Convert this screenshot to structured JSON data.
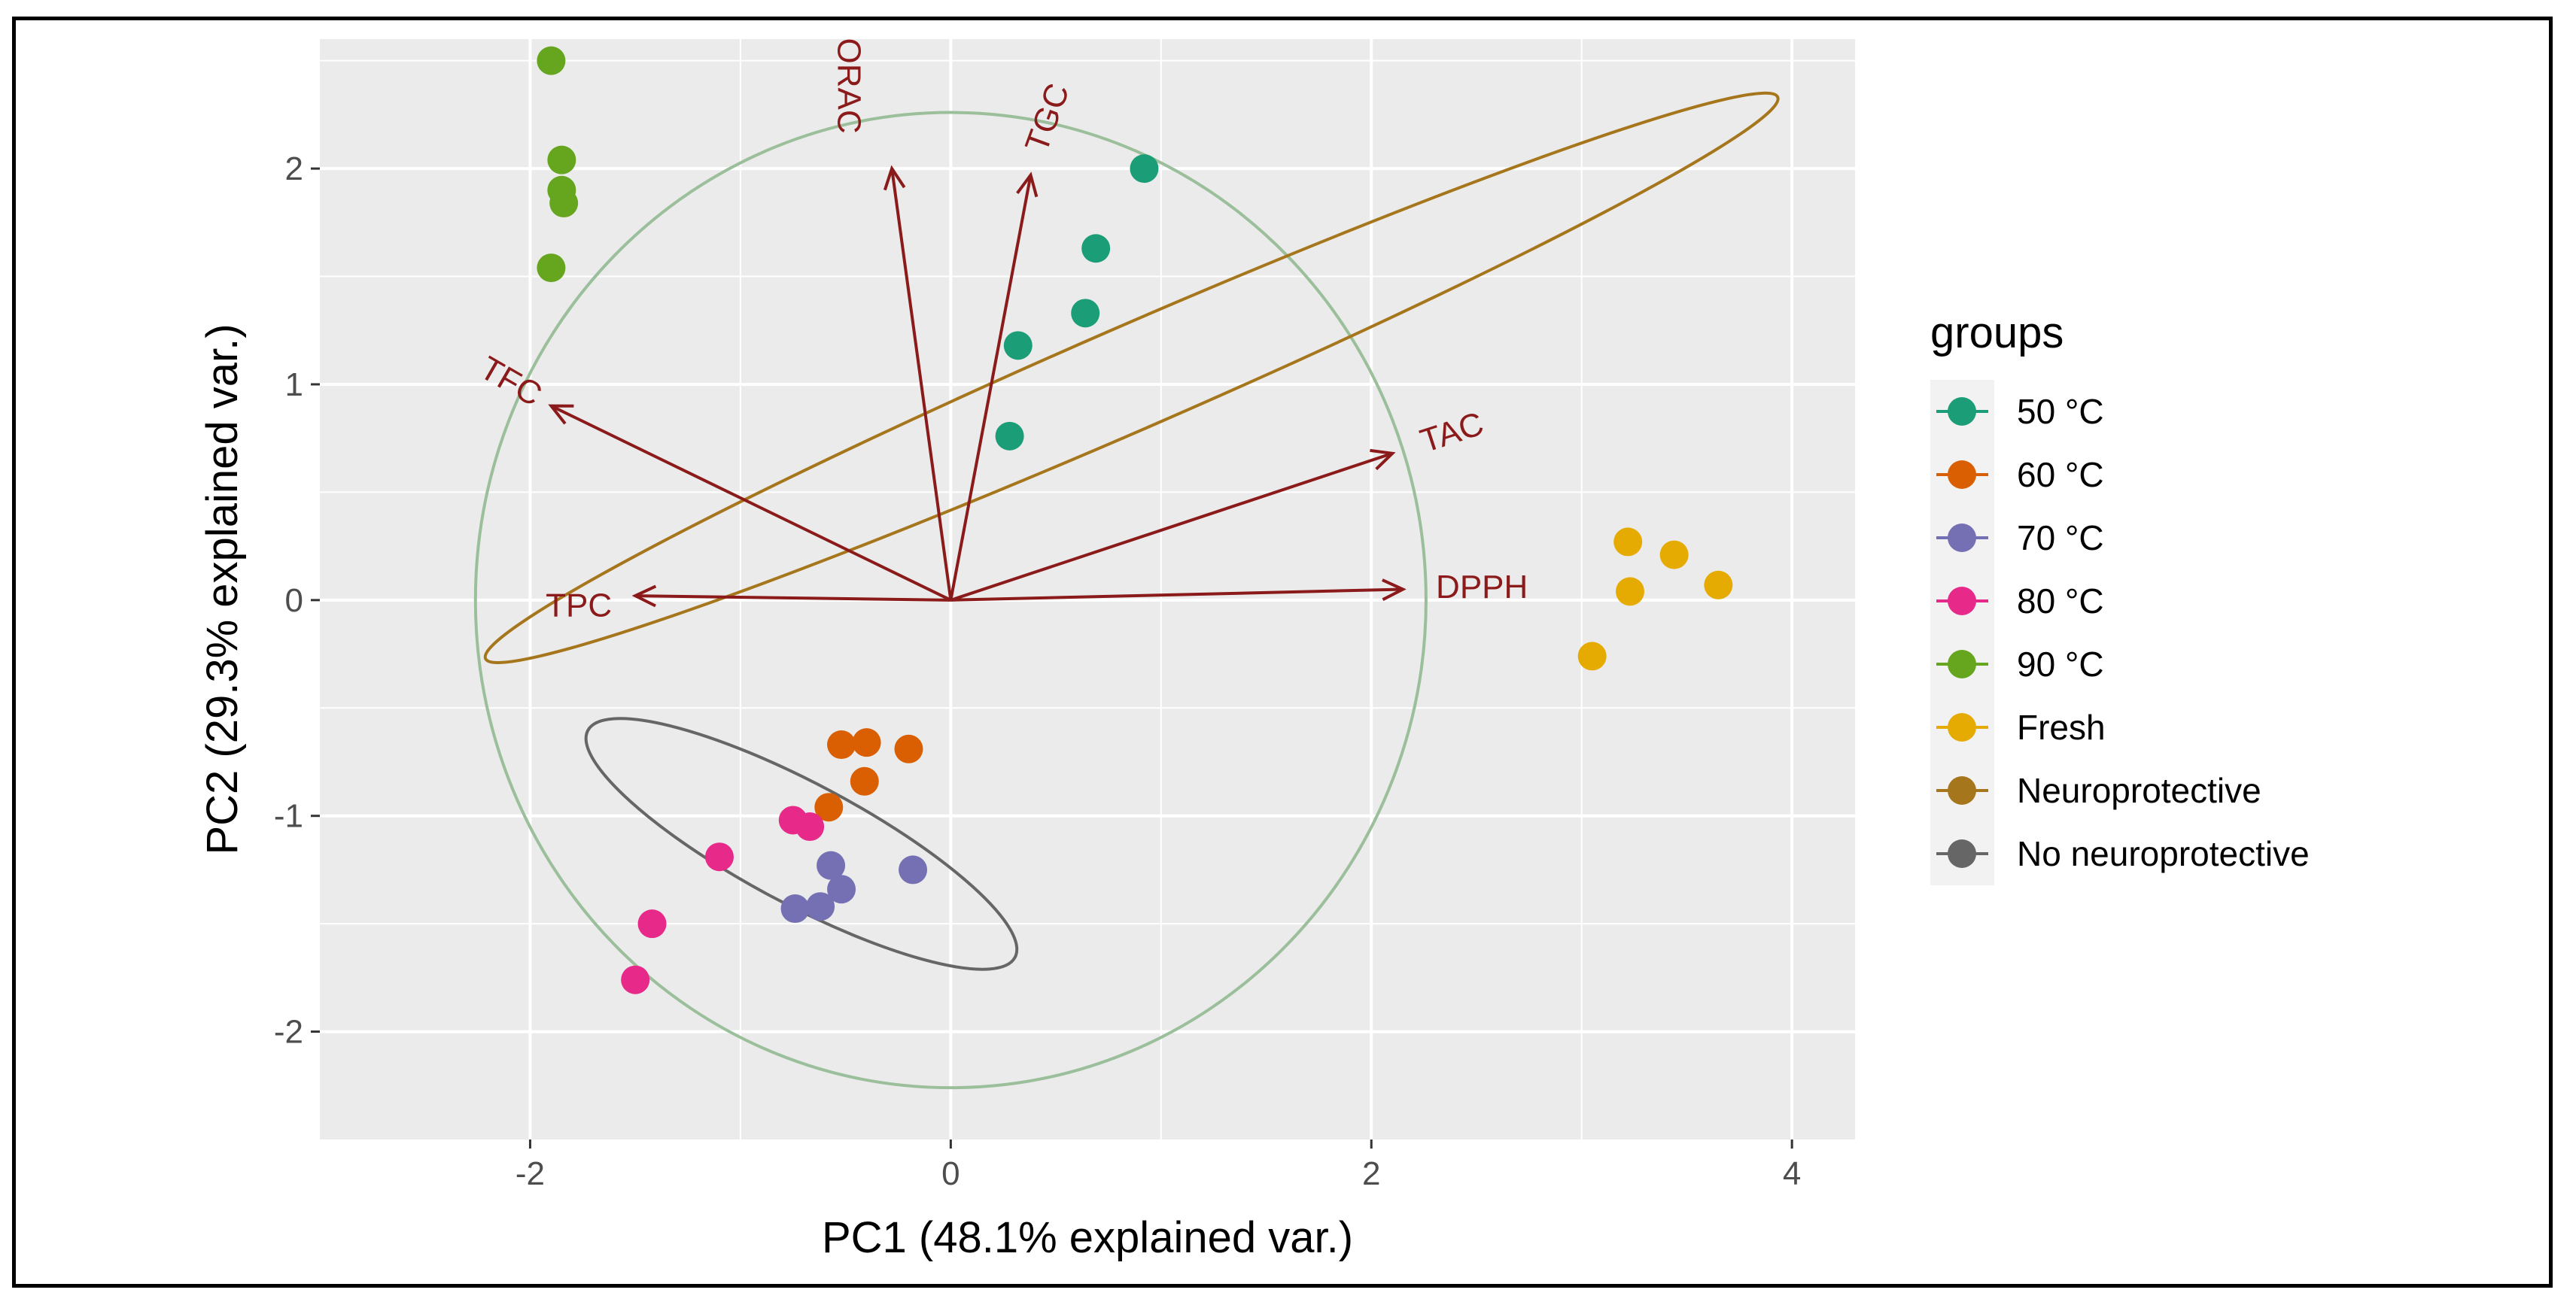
{
  "chart_data": {
    "type": "scatter",
    "subtype": "pca-biplot",
    "xlabel": "PC1 (48.1% explained var.)",
    "ylabel": "PC2 (29.3% explained var.)",
    "xlim": [
      -3.0,
      4.3
    ],
    "ylim": [
      -2.5,
      2.6
    ],
    "xticks": [
      -2,
      0,
      2,
      4
    ],
    "xtick_labels": [
      "-2",
      "0",
      "2",
      "4"
    ],
    "yticks": [
      -2,
      -1,
      0,
      1,
      2
    ],
    "ytick_labels": [
      "-2",
      "-1",
      "0",
      "1",
      "2"
    ],
    "grid": true,
    "legend_position": "right",
    "legend_title": "groups",
    "series": [
      {
        "name": "50 °C",
        "color": "#1b9e77",
        "points": [
          [
            0.92,
            2.0
          ],
          [
            0.69,
            1.63
          ],
          [
            0.64,
            1.33
          ],
          [
            0.32,
            1.18
          ],
          [
            0.28,
            0.76
          ]
        ]
      },
      {
        "name": "60 °C",
        "color": "#d95f02",
        "points": [
          [
            -0.52,
            -0.67
          ],
          [
            -0.4,
            -0.66
          ],
          [
            -0.2,
            -0.69
          ],
          [
            -0.41,
            -0.84
          ],
          [
            -0.58,
            -0.96
          ]
        ]
      },
      {
        "name": "70 °C",
        "color": "#7570b3",
        "points": [
          [
            -0.57,
            -1.23
          ],
          [
            -0.52,
            -1.34
          ],
          [
            -0.62,
            -1.42
          ],
          [
            -0.74,
            -1.43
          ],
          [
            -0.18,
            -1.25
          ]
        ]
      },
      {
        "name": "80 °C",
        "color": "#e7298a",
        "points": [
          [
            -0.75,
            -1.02
          ],
          [
            -0.67,
            -1.05
          ],
          [
            -1.1,
            -1.19
          ],
          [
            -1.42,
            -1.5
          ],
          [
            -1.5,
            -1.76
          ]
        ]
      },
      {
        "name": "90 °C",
        "color": "#66a61e",
        "points": [
          [
            -1.9,
            2.5
          ],
          [
            -1.85,
            2.04
          ],
          [
            -1.85,
            1.9
          ],
          [
            -1.84,
            1.84
          ],
          [
            -1.9,
            1.54
          ]
        ]
      },
      {
        "name": "Fresh",
        "color": "#e6ab02",
        "points": [
          [
            3.22,
            0.27
          ],
          [
            3.44,
            0.21
          ],
          [
            3.65,
            0.07
          ],
          [
            3.23,
            0.04
          ],
          [
            3.05,
            -0.26
          ]
        ]
      }
    ],
    "ellipses": [
      {
        "name": "Neuroprotective",
        "color": "#a6761d",
        "cx": 0.86,
        "cy": 1.03,
        "rx": 3.35,
        "ry": 0.24,
        "angle_deg": -23.5
      },
      {
        "name": "No neuroprotective",
        "color": "#666666",
        "cx": -0.71,
        "cy": -1.13,
        "rx": 1.15,
        "ry": 0.28,
        "angle_deg": 28
      }
    ],
    "circle": {
      "cx": 0,
      "cy": 0,
      "r": 2.26,
      "color": "#9bbf9b"
    },
    "loadings": [
      {
        "label": "ORAC",
        "x": -0.28,
        "y": 2.0
      },
      {
        "label": "TGC",
        "x": 0.38,
        "y": 1.97
      },
      {
        "label": "TFC",
        "x": -1.9,
        "y": 0.9
      },
      {
        "label": "TAC",
        "x": 2.1,
        "y": 0.68
      },
      {
        "label": "TPC",
        "x": -1.5,
        "y": 0.02
      },
      {
        "label": "DPPH",
        "x": 2.15,
        "y": 0.05
      }
    ],
    "loading_color": "#8b1a1a",
    "legend_entries": [
      {
        "label": "50 °C",
        "color": "#1b9e77"
      },
      {
        "label": "60 °C",
        "color": "#d95f02"
      },
      {
        "label": "70 °C",
        "color": "#7570b3"
      },
      {
        "label": "80 °C",
        "color": "#e7298a"
      },
      {
        "label": "90 °C",
        "color": "#66a61e"
      },
      {
        "label": "Fresh",
        "color": "#e6ab02"
      },
      {
        "label": "Neuroprotective",
        "color": "#a6761d"
      },
      {
        "label": "No neuroprotective",
        "color": "#666666"
      }
    ]
  }
}
